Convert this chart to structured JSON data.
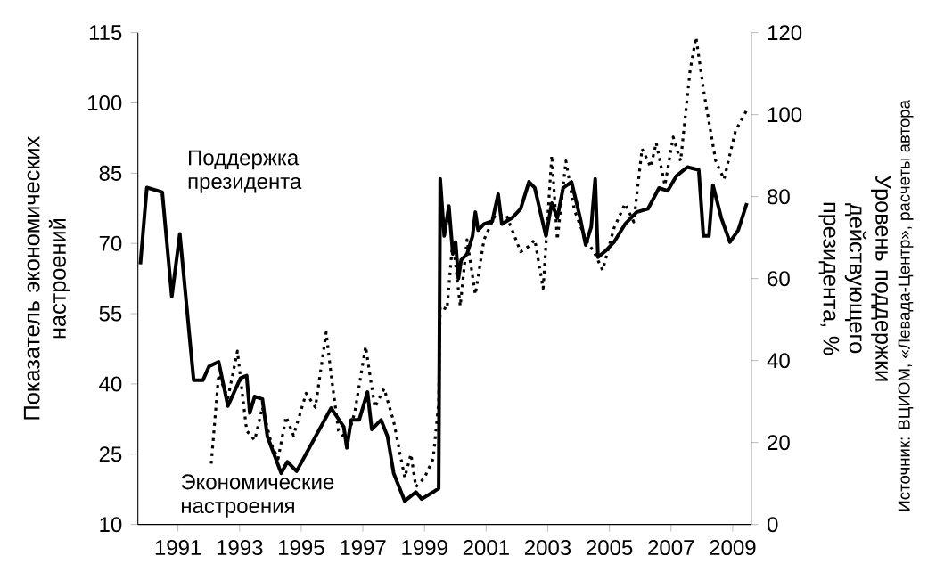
{
  "chart_data": {
    "type": "line",
    "ylabel": "Показатель экономических настроений",
    "y2label": "Уровень поддержки действующего президента, %",
    "annotations": [
      "Источник: ВЦИОМ, «Левада-Центр», расчеты автора"
    ],
    "xlim": [
      1989.7,
      2009.6
    ],
    "xticks": [
      1991,
      1993,
      1995,
      1997,
      1999,
      2001,
      2003,
      2005,
      2007,
      2009
    ],
    "ylim": [
      10,
      115
    ],
    "yticks": [
      10,
      25,
      40,
      55,
      70,
      85,
      100,
      115
    ],
    "y2lim": [
      0,
      120
    ],
    "y2ticks": [
      0,
      20,
      40,
      60,
      80,
      100,
      120
    ],
    "series": [
      {
        "name": "Экономические настроения",
        "axis": "y",
        "color": "#000000",
        "line_style": "dotted",
        "x": [
          1992.08,
          1992.32,
          1992.62,
          1992.93,
          1993.23,
          1993.49,
          1993.74,
          1994.04,
          1994.25,
          1994.51,
          1994.75,
          1995.16,
          1995.46,
          1995.81,
          1995.97,
          1996.21,
          1996.48,
          1996.74,
          1997.09,
          1997.39,
          1997.69,
          1998.0,
          1998.36,
          1998.56,
          1998.72,
          1999.0,
          1999.28,
          1999.46,
          1999.51,
          1999.73,
          1999.92,
          2000.16,
          2000.38,
          2000.65,
          2000.93,
          2001.29,
          2001.66,
          2002.12,
          2002.39,
          2002.58,
          2002.85,
          2003.13,
          2003.31,
          2003.59,
          2003.86,
          2004.23,
          2004.5,
          2004.78,
          2005.15,
          2005.51,
          2005.79,
          2006.06,
          2006.34,
          2006.52,
          2006.8,
          2007.07,
          2007.31,
          2007.62,
          2007.81,
          2008.08,
          2008.45,
          2008.72,
          2009.09,
          2009.46
        ],
        "values": [
          23,
          42,
          37,
          47,
          30,
          28,
          35,
          27,
          24,
          33,
          29,
          38,
          35,
          51,
          42,
          30,
          28,
          34,
          48,
          35,
          39,
          32,
          20,
          25,
          18,
          20,
          24,
          36,
          56.6,
          55.9,
          70.8,
          56.6,
          70.8,
          59.1,
          70.8,
          76,
          76,
          68.2,
          69.4,
          70.8,
          60.4,
          88.8,
          70.8,
          87.6,
          77.2,
          70.8,
          68.2,
          64.3,
          73.3,
          78.5,
          74.6,
          90.2,
          86.3,
          91.5,
          82.4,
          92.7,
          87.6,
          107,
          114,
          101.7,
          87.6,
          83.7,
          94,
          98.5
        ]
      },
      {
        "name": "Поддержка президента",
        "axis": "y2",
        "color": "#000000",
        "line_style": "solid",
        "x": [
          1989.78,
          1989.99,
          1990.49,
          1990.8,
          1991.06,
          1991.51,
          1991.81,
          1992.01,
          1992.32,
          1992.62,
          1993.03,
          1993.23,
          1993.33,
          1993.49,
          1993.74,
          1993.9,
          1994.35,
          1994.55,
          1994.85,
          1995.97,
          1996.38,
          1996.48,
          1996.62,
          1996.88,
          1997.15,
          1997.29,
          1997.59,
          1997.8,
          1998.0,
          1998.36,
          1998.72,
          1998.91,
          1999.28,
          1999.46,
          1999.51,
          1999.64,
          1999.79,
          1999.92,
          2000.01,
          2000.1,
          2000.19,
          2000.38,
          2000.56,
          2000.65,
          2000.74,
          2000.93,
          2001.2,
          2001.39,
          2001.51,
          2001.84,
          2002.12,
          2002.39,
          2002.58,
          2002.76,
          2002.94,
          2003.13,
          2003.31,
          2003.5,
          2003.77,
          2004.05,
          2004.23,
          2004.41,
          2004.54,
          2004.63,
          2004.87,
          2005.15,
          2005.51,
          2005.88,
          2006.25,
          2006.61,
          2006.89,
          2007.17,
          2007.53,
          2007.9,
          2008.05,
          2008.23,
          2008.36,
          2008.63,
          2008.91,
          2009.18,
          2009.46
        ],
        "values": [
          63.5,
          82.2,
          81.1,
          55.6,
          70.9,
          35.2,
          35.2,
          38.6,
          39.7,
          28.9,
          35.7,
          36.3,
          27.2,
          31.2,
          30.6,
          21.5,
          12.5,
          15.3,
          13,
          28.4,
          23.8,
          18.7,
          25.5,
          25.5,
          32.3,
          23.2,
          25.5,
          21.5,
          12.5,
          5.7,
          7.9,
          6.2,
          7.9,
          8.8,
          84.3,
          70.4,
          77.7,
          66,
          68.9,
          60,
          64.5,
          66,
          70.4,
          76.2,
          71.8,
          73.3,
          74,
          80.6,
          73.3,
          74.8,
          77,
          83.6,
          82.1,
          76.2,
          70.4,
          78.4,
          74.8,
          82.1,
          83.6,
          74.8,
          68.2,
          72.6,
          84.3,
          65.2,
          66.7,
          68.9,
          73.3,
          76.2,
          77,
          82.1,
          81.4,
          85,
          87.2,
          86.5,
          70.4,
          70.4,
          82.8,
          74.8,
          68.9,
          71.8,
          78.4
        ]
      }
    ]
  }
}
